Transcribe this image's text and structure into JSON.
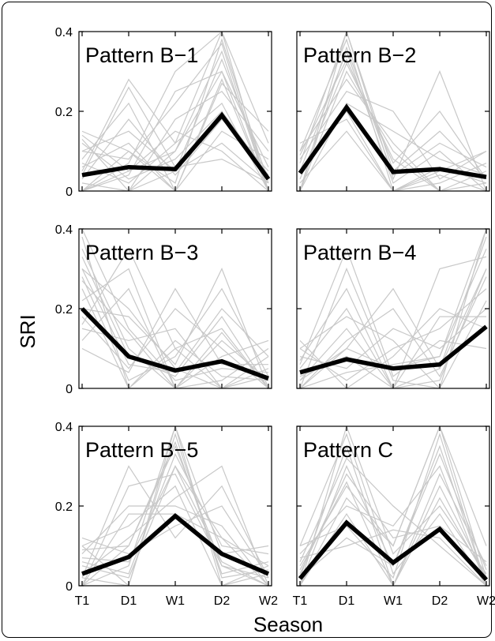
{
  "figure": {
    "ylabel": "SRI",
    "xlabel": "Season"
  },
  "colors": {
    "background_series": "#c8c8c8",
    "mean_series": "#000000",
    "axes": "#000000"
  },
  "chart_data": [
    {
      "type": "line",
      "title": "Pattern B−1",
      "categories": [
        "T1",
        "D1",
        "W1",
        "D2",
        "W2"
      ],
      "ylim": [
        0,
        0.4
      ],
      "yticks": [
        0,
        0.2,
        0.4
      ],
      "ytick_labels": [
        "0",
        "0.2",
        "0.4"
      ],
      "series": [
        {
          "values": [
            0.04,
            0.06,
            0.055,
            0.19,
            0.03
          ]
        }
      ],
      "background_series": [
        [
          0.13,
          0.0,
          0.1,
          0.35,
          0.0
        ],
        [
          0.15,
          0.1,
          0.02,
          0.38,
          0.02
        ],
        [
          0.0,
          0.05,
          0.1,
          0.3,
          0.06
        ],
        [
          0.08,
          0.22,
          0.0,
          0.28,
          0.0
        ],
        [
          0.02,
          0.0,
          0.18,
          0.25,
          0.1
        ],
        [
          0.1,
          0.15,
          0.05,
          0.33,
          0.03
        ],
        [
          0.05,
          0.28,
          0.12,
          0.22,
          0.0
        ],
        [
          0.0,
          0.07,
          0.3,
          0.4,
          0.12
        ],
        [
          0.12,
          0.03,
          0.08,
          0.2,
          0.04
        ],
        [
          0.06,
          0.12,
          0.0,
          0.15,
          0.08
        ],
        [
          0.0,
          0.0,
          0.05,
          0.12,
          0.02
        ],
        [
          0.1,
          0.08,
          0.22,
          0.37,
          0.0
        ],
        [
          0.03,
          0.18,
          0.04,
          0.18,
          0.05
        ],
        [
          0.14,
          0.05,
          0.15,
          0.1,
          0.0
        ],
        [
          0.0,
          0.1,
          0.0,
          0.27,
          0.15
        ],
        [
          0.07,
          0.02,
          0.12,
          0.4,
          0.0
        ],
        [
          0.04,
          0.26,
          0.06,
          0.08,
          0.02
        ],
        [
          0.0,
          0.04,
          0.25,
          0.3,
          0.0
        ]
      ]
    },
    {
      "type": "line",
      "title": "Pattern B−2",
      "categories": [
        "T1",
        "D1",
        "W1",
        "D2",
        "W2"
      ],
      "ylim": [
        0,
        0.4
      ],
      "yticks": [
        0,
        0.2,
        0.4
      ],
      "ytick_labels": [
        "",
        "",
        ""
      ],
      "series": [
        {
          "values": [
            0.045,
            0.21,
            0.048,
            0.055,
            0.035
          ]
        }
      ],
      "background_series": [
        [
          0.1,
          0.38,
          0.0,
          0.06,
          0.02
        ],
        [
          0.0,
          0.3,
          0.1,
          0.0,
          0.05
        ],
        [
          0.05,
          0.35,
          0.02,
          0.1,
          0.0
        ],
        [
          0.08,
          0.25,
          0.2,
          0.03,
          0.1
        ],
        [
          0.0,
          0.4,
          0.05,
          0.15,
          0.03
        ],
        [
          0.12,
          0.18,
          0.0,
          0.02,
          0.07
        ],
        [
          0.03,
          0.32,
          0.08,
          0.0,
          0.0
        ],
        [
          0.0,
          0.22,
          0.15,
          0.08,
          0.04
        ],
        [
          0.07,
          0.4,
          0.03,
          0.3,
          0.0
        ],
        [
          0.02,
          0.15,
          0.0,
          0.05,
          0.1
        ],
        [
          0.1,
          0.28,
          0.12,
          0.0,
          0.02
        ],
        [
          0.0,
          0.36,
          0.04,
          0.12,
          0.06
        ],
        [
          0.05,
          0.2,
          0.0,
          0.04,
          0.0
        ],
        [
          0.09,
          0.33,
          0.07,
          0.2,
          0.03
        ]
      ]
    },
    {
      "type": "line",
      "title": "Pattern B−3",
      "categories": [
        "T1",
        "D1",
        "W1",
        "D2",
        "W2"
      ],
      "ylim": [
        0,
        0.4
      ],
      "yticks": [
        0,
        0.2,
        0.4
      ],
      "ytick_labels": [
        "0",
        "0.2",
        "0.4"
      ],
      "series": [
        {
          "values": [
            0.2,
            0.08,
            0.045,
            0.068,
            0.025
          ]
        }
      ],
      "background_series": [
        [
          0.35,
          0.1,
          0.0,
          0.12,
          0.02
        ],
        [
          0.3,
          0.2,
          0.05,
          0.0,
          0.08
        ],
        [
          0.25,
          0.0,
          0.1,
          0.15,
          0.0
        ],
        [
          0.4,
          0.15,
          0.02,
          0.05,
          0.04
        ],
        [
          0.18,
          0.05,
          0.2,
          0.1,
          0.0
        ],
        [
          0.22,
          0.3,
          0.0,
          0.02,
          0.1
        ],
        [
          0.28,
          0.02,
          0.08,
          0.25,
          0.03
        ],
        [
          0.15,
          0.12,
          0.15,
          0.0,
          0.05
        ],
        [
          0.33,
          0.08,
          0.03,
          0.18,
          0.0
        ],
        [
          0.12,
          0.25,
          0.0,
          0.08,
          0.12
        ],
        [
          0.38,
          0.0,
          0.12,
          0.03,
          0.02
        ],
        [
          0.2,
          0.18,
          0.06,
          0.3,
          0.0
        ],
        [
          0.1,
          0.04,
          0.25,
          0.06,
          0.06
        ],
        [
          0.27,
          0.14,
          0.0,
          0.14,
          0.0
        ],
        [
          0.16,
          0.35,
          0.1,
          0.0,
          0.03
        ],
        [
          0.3,
          0.06,
          0.04,
          0.2,
          0.08
        ]
      ]
    },
    {
      "type": "line",
      "title": "Pattern B−4",
      "categories": [
        "T1",
        "D1",
        "W1",
        "D2",
        "W2"
      ],
      "ylim": [
        0,
        0.4
      ],
      "yticks": [
        0,
        0.2,
        0.4
      ],
      "ytick_labels": [
        "",
        "",
        ""
      ],
      "series": [
        {
          "values": [
            0.04,
            0.073,
            0.05,
            0.06,
            0.155
          ]
        }
      ],
      "background_series": [
        [
          0.0,
          0.1,
          0.05,
          0.08,
          0.35
        ],
        [
          0.05,
          0.2,
          0.0,
          0.02,
          0.3
        ],
        [
          0.1,
          0.02,
          0.1,
          0.15,
          0.25
        ],
        [
          0.0,
          0.3,
          0.02,
          0.0,
          0.4
        ],
        [
          0.08,
          0.05,
          0.15,
          0.1,
          0.2
        ],
        [
          0.02,
          0.15,
          0.0,
          0.05,
          0.38
        ],
        [
          0.12,
          0.0,
          0.08,
          0.2,
          0.15
        ],
        [
          0.0,
          0.12,
          0.2,
          0.03,
          0.28
        ],
        [
          0.06,
          0.35,
          0.03,
          0.12,
          0.1
        ],
        [
          0.03,
          0.08,
          0.0,
          0.3,
          0.33
        ],
        [
          0.1,
          0.18,
          0.12,
          0.0,
          0.22
        ],
        [
          0.0,
          0.04,
          0.06,
          0.08,
          0.4
        ],
        [
          0.07,
          0.25,
          0.0,
          0.18,
          0.18
        ],
        [
          0.02,
          0.1,
          0.25,
          0.05,
          0.3
        ]
      ]
    },
    {
      "type": "line",
      "title": "Pattern B−5",
      "categories": [
        "T1",
        "D1",
        "W1",
        "D2",
        "W2"
      ],
      "ylim": [
        0,
        0.4
      ],
      "yticks": [
        0,
        0.2,
        0.4
      ],
      "ytick_labels": [
        "0",
        "0.2",
        "0.4"
      ],
      "series": [
        {
          "values": [
            0.03,
            0.072,
            0.175,
            0.08,
            0.03
          ]
        }
      ],
      "background_series": [
        [
          0.0,
          0.1,
          0.35,
          0.05,
          0.02
        ],
        [
          0.05,
          0.02,
          0.3,
          0.12,
          0.0
        ],
        [
          0.1,
          0.15,
          0.25,
          0.0,
          0.05
        ],
        [
          0.0,
          0.05,
          0.4,
          0.08,
          0.1
        ],
        [
          0.08,
          0.2,
          0.2,
          0.15,
          0.0
        ],
        [
          0.02,
          0.0,
          0.38,
          0.02,
          0.04
        ],
        [
          0.12,
          0.08,
          0.15,
          0.2,
          0.02
        ],
        [
          0.0,
          0.25,
          0.28,
          0.05,
          0.0
        ],
        [
          0.06,
          0.03,
          0.33,
          0.1,
          0.08
        ],
        [
          0.03,
          0.12,
          0.22,
          0.3,
          0.0
        ],
        [
          0.1,
          0.0,
          0.4,
          0.0,
          0.03
        ],
        [
          0.0,
          0.18,
          0.18,
          0.12,
          0.05
        ],
        [
          0.07,
          0.06,
          0.3,
          0.06,
          0.0
        ],
        [
          0.02,
          0.3,
          0.12,
          0.25,
          0.02
        ],
        [
          0.09,
          0.1,
          0.36,
          0.03,
          0.06
        ]
      ]
    },
    {
      "type": "line",
      "title": "Pattern C",
      "categories": [
        "T1",
        "D1",
        "W1",
        "D2",
        "W2"
      ],
      "ylim": [
        0,
        0.4
      ],
      "yticks": [
        0,
        0.2,
        0.4
      ],
      "ytick_labels": [
        "",
        "",
        ""
      ],
      "series": [
        {
          "values": [
            0.018,
            0.158,
            0.058,
            0.142,
            0.015
          ]
        }
      ],
      "background_series": [
        [
          0.0,
          0.3,
          0.05,
          0.35,
          0.0
        ],
        [
          0.05,
          0.25,
          0.1,
          0.4,
          0.02
        ],
        [
          0.02,
          0.35,
          0.0,
          0.28,
          0.05
        ],
        [
          0.08,
          0.2,
          0.15,
          0.3,
          0.0
        ],
        [
          0.0,
          0.4,
          0.08,
          0.2,
          0.03
        ],
        [
          0.1,
          0.15,
          0.02,
          0.38,
          0.0
        ],
        [
          0.03,
          0.28,
          0.12,
          0.15,
          0.06
        ],
        [
          0.0,
          0.18,
          0.0,
          0.25,
          0.02
        ],
        [
          0.06,
          0.32,
          0.2,
          0.1,
          0.0
        ],
        [
          0.02,
          0.12,
          0.05,
          0.33,
          0.04
        ],
        [
          0.1,
          0.38,
          0.03,
          0.18,
          0.0
        ],
        [
          0.0,
          0.22,
          0.1,
          0.4,
          0.1
        ],
        [
          0.04,
          0.26,
          0.0,
          0.22,
          0.02
        ],
        [
          0.07,
          0.1,
          0.14,
          0.12,
          0.0
        ]
      ]
    }
  ]
}
